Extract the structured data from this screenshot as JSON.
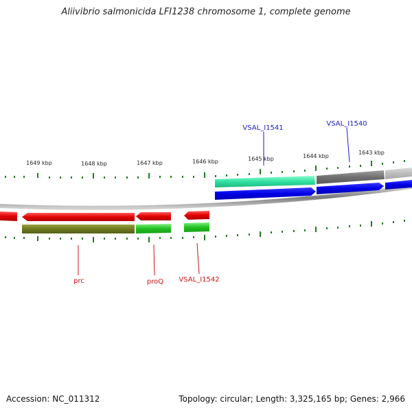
{
  "title": "Aliivibrio salmonicida LFI1238 chromosome 1, complete genome",
  "accession": "Accession: NC_011312",
  "summary": "Topology: circular; Length: 3,325,165 bp; Genes: 2,966",
  "scale_labels": [
    {
      "id": "kbp-1649",
      "text": "1649 kbp"
    },
    {
      "id": "kbp-1648",
      "text": "1648 kbp"
    },
    {
      "id": "kbp-1647",
      "text": "1647 kbp"
    },
    {
      "id": "kbp-1646",
      "text": "1646 kbp"
    },
    {
      "id": "kbp-1645",
      "text": "1645 kbp"
    },
    {
      "id": "kbp-1644",
      "text": "1644 kbp"
    },
    {
      "id": "kbp-1643",
      "text": "1643 kbp"
    }
  ],
  "gene_labels": {
    "vsal_i1541": "VSAL_I1541",
    "vsal_i1540": "VSAL_I1540",
    "prc": "prc",
    "proq": "proQ",
    "vsal_i1542": "VSAL_I1542"
  },
  "colors": {
    "forward_label": "#1a1acc",
    "reverse_label": "#cc1111",
    "tick": "#1f7a1f",
    "backbone": "#808080"
  }
}
